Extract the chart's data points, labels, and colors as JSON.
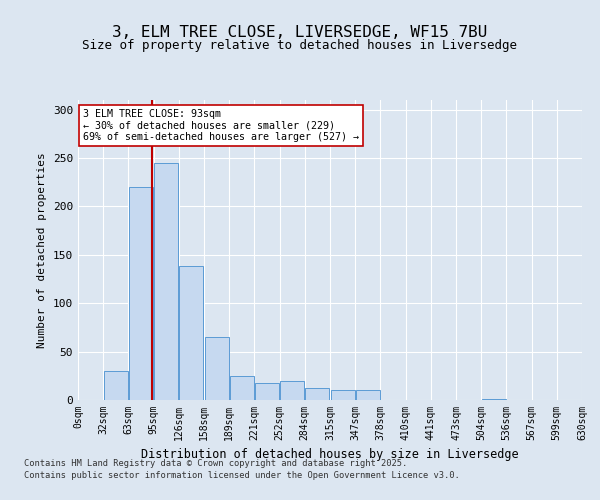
{
  "title_line1": "3, ELM TREE CLOSE, LIVERSEDGE, WF15 7BU",
  "title_line2": "Size of property relative to detached houses in Liversedge",
  "xlabel": "Distribution of detached houses by size in Liversedge",
  "ylabel": "Number of detached properties",
  "bin_labels": [
    "0sqm",
    "32sqm",
    "63sqm",
    "95sqm",
    "126sqm",
    "158sqm",
    "189sqm",
    "221sqm",
    "252sqm",
    "284sqm",
    "315sqm",
    "347sqm",
    "378sqm",
    "410sqm",
    "441sqm",
    "473sqm",
    "504sqm",
    "536sqm",
    "567sqm",
    "599sqm",
    "630sqm"
  ],
  "bar_heights": [
    0,
    30,
    220,
    245,
    138,
    65,
    25,
    18,
    20,
    12,
    10,
    10,
    0,
    0,
    0,
    0,
    1,
    0,
    0,
    0
  ],
  "bar_color": "#c6d9f0",
  "bar_edge_color": "#5b9bd5",
  "vline_color": "#c00000",
  "annotation_line1": "3 ELM TREE CLOSE: 93sqm",
  "annotation_line2": "← 30% of detached houses are smaller (229)",
  "annotation_line3": "69% of semi-detached houses are larger (527) →",
  "annotation_box_color": "#ffffff",
  "annotation_box_edge": "#c00000",
  "footer_line1": "Contains HM Land Registry data © Crown copyright and database right 2025.",
  "footer_line2": "Contains public sector information licensed under the Open Government Licence v3.0.",
  "background_color": "#dce6f1",
  "ylim": [
    0,
    310
  ],
  "yticks": [
    0,
    50,
    100,
    150,
    200,
    250,
    300
  ]
}
